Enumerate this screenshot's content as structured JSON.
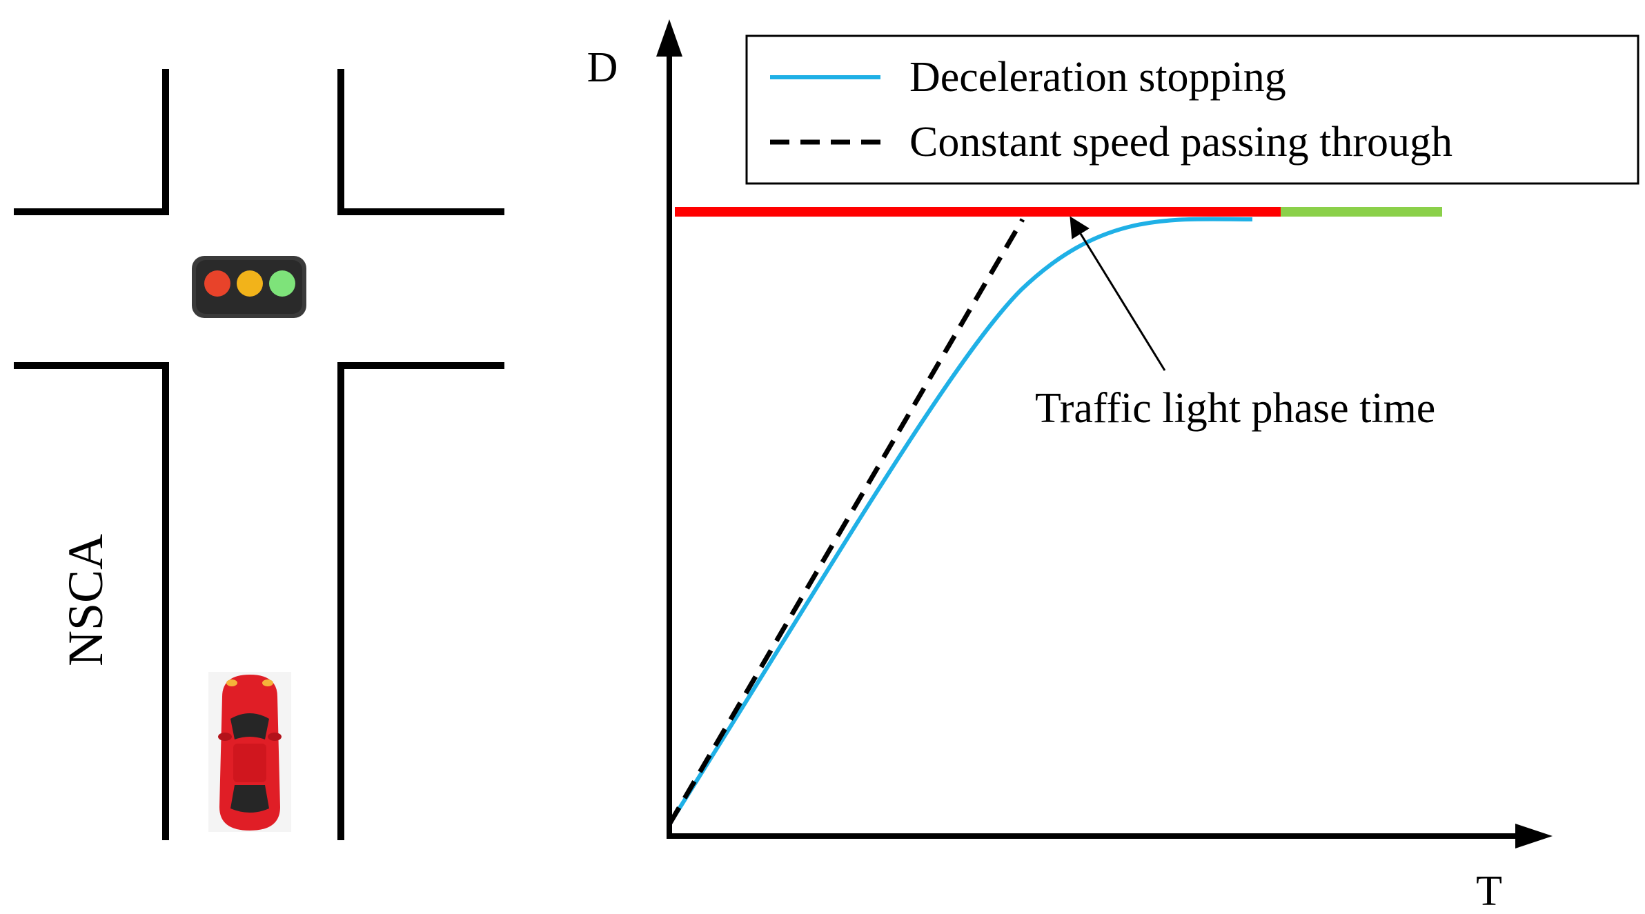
{
  "scene": {
    "vertical_label": "NSCA",
    "traffic_light_colors": [
      "#e8432a",
      "#f2b31a",
      "#7ee37a"
    ],
    "car_color": "#e01e26"
  },
  "chart": {
    "y_axis_label": "D",
    "x_axis_label": "T",
    "legend": [
      {
        "label": "Deceleration stopping",
        "style": "solid",
        "color": "#1fb0e6"
      },
      {
        "label": "Constant speed passing through",
        "style": "dashed",
        "color": "#000000"
      }
    ],
    "annotation": "Traffic light phase time",
    "phase_colors": {
      "red": "#ff0000",
      "green": "#8bd04a"
    }
  }
}
